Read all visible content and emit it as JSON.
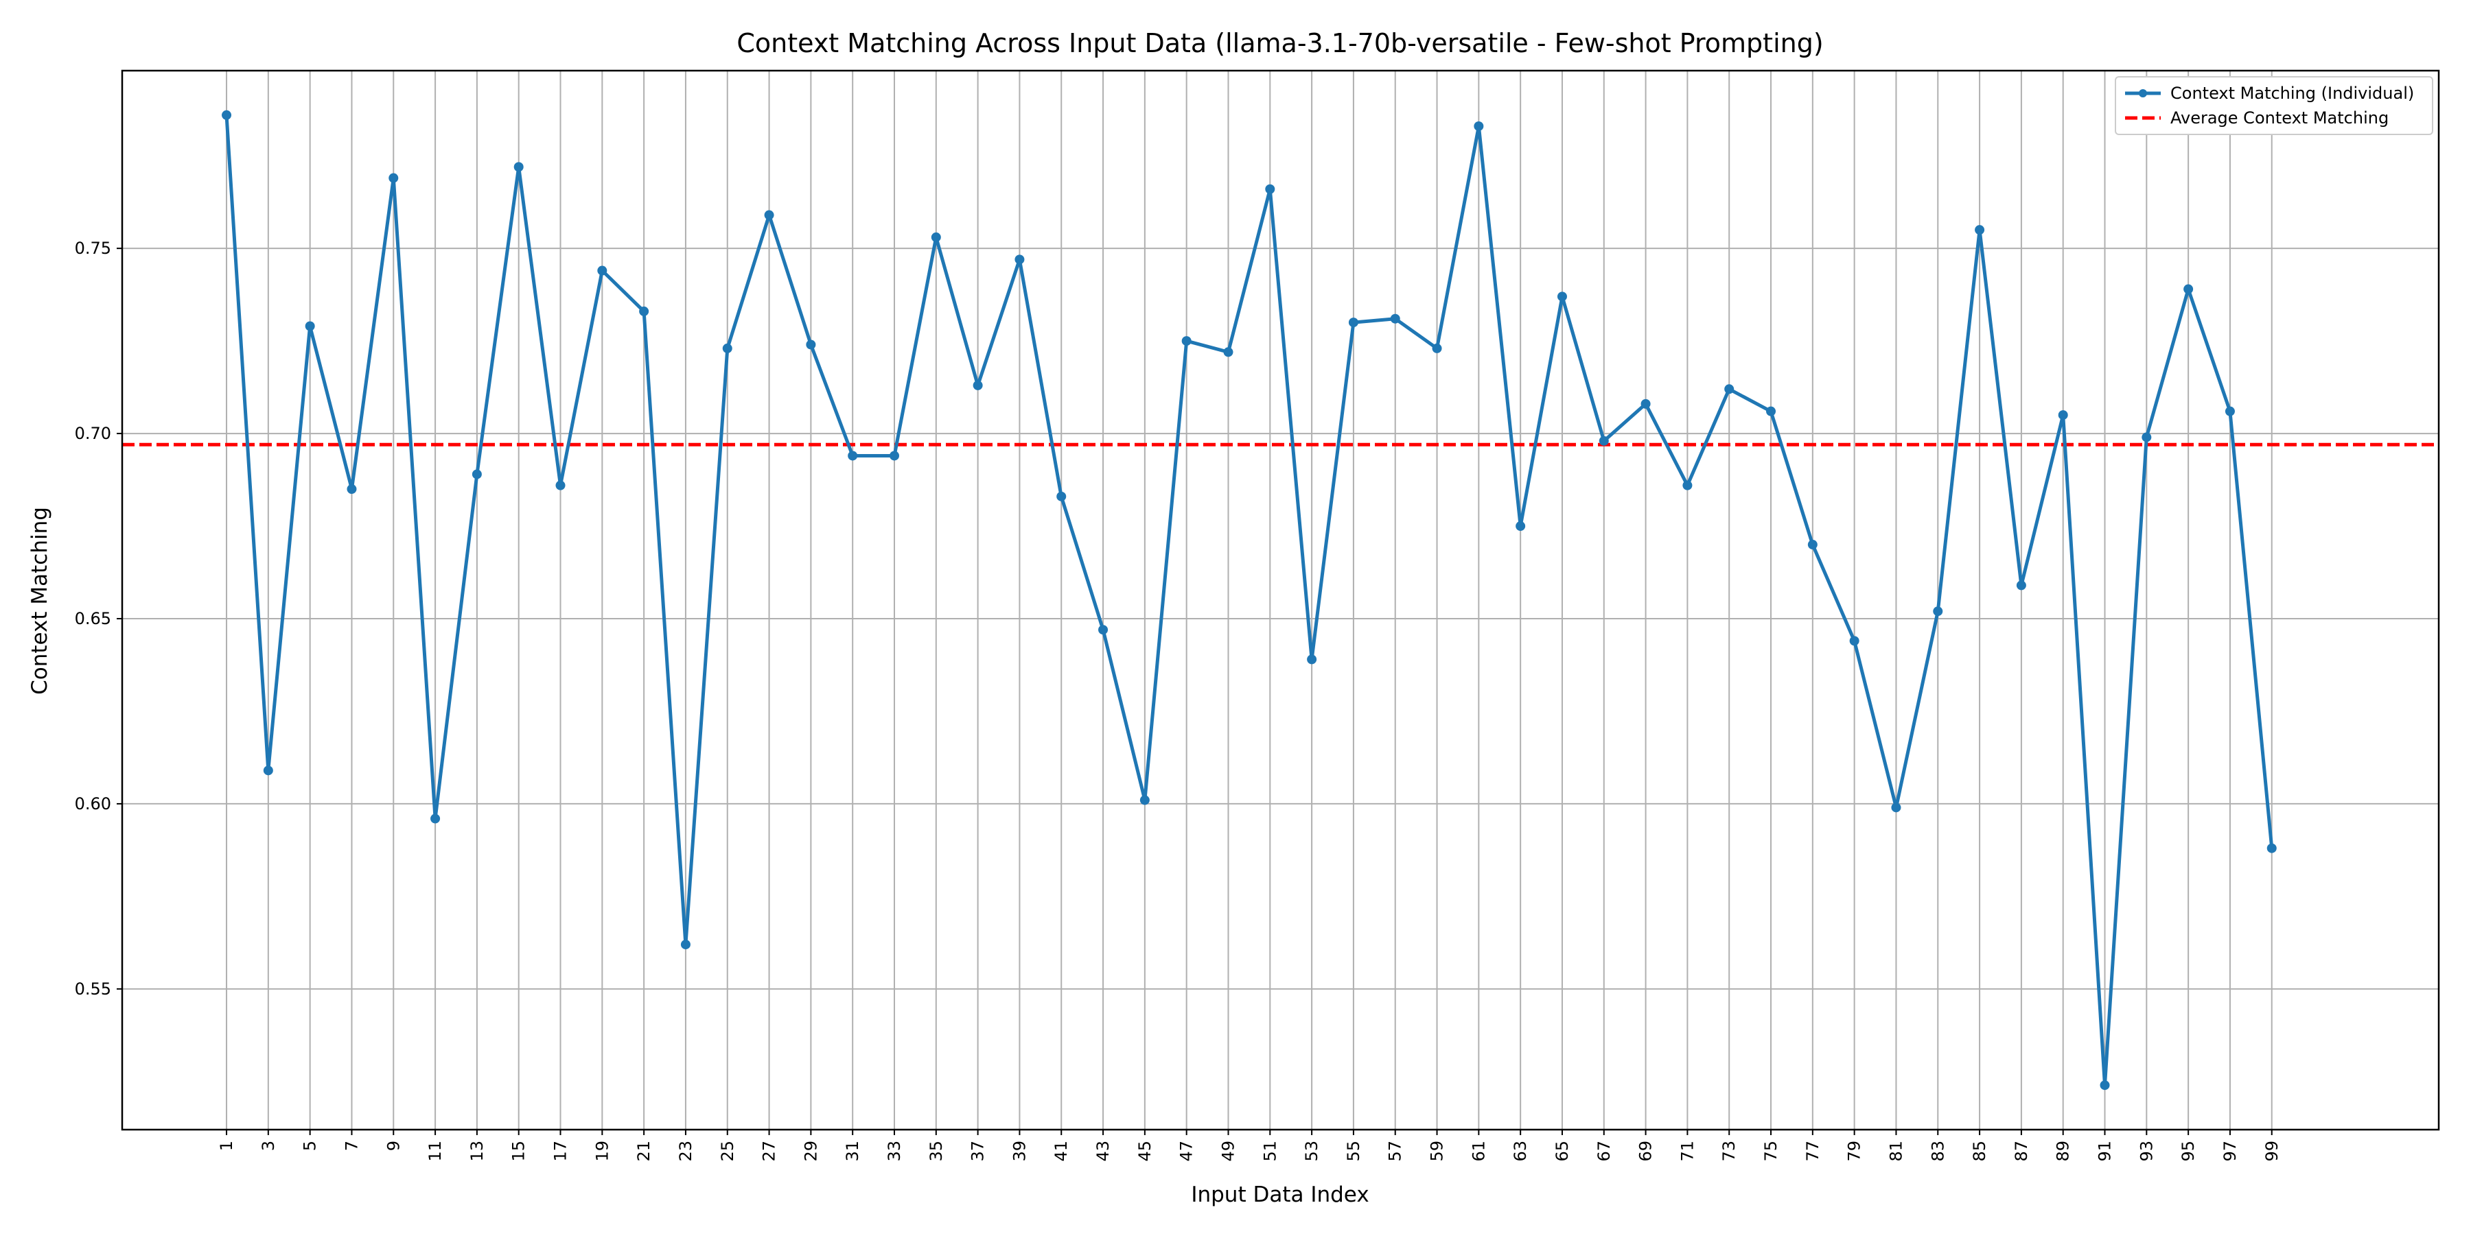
{
  "chart_data": {
    "type": "line",
    "title": "Context Matching Across Input Data (llama-3.1-70b-versatile - Few-shot Prompting)",
    "xlabel": "Input Data Index",
    "ylabel": "Context Matching",
    "x": [
      1,
      3,
      5,
      7,
      9,
      11,
      13,
      15,
      17,
      19,
      21,
      23,
      25,
      27,
      29,
      31,
      33,
      35,
      37,
      39,
      41,
      43,
      45,
      47,
      49,
      51,
      53,
      55,
      57,
      59,
      61,
      63,
      65,
      67,
      69,
      71,
      73,
      75,
      77,
      79,
      81,
      83,
      85,
      87,
      89,
      91,
      93,
      95,
      97,
      99
    ],
    "xticks": [
      "1",
      "3",
      "5",
      "7",
      "9",
      "11",
      "13",
      "15",
      "17",
      "19",
      "21",
      "23",
      "25",
      "27",
      "29",
      "31",
      "33",
      "35",
      "37",
      "39",
      "41",
      "43",
      "45",
      "47",
      "49",
      "51",
      "53",
      "55",
      "57",
      "59",
      "61",
      "63",
      "65",
      "67",
      "69",
      "71",
      "73",
      "75",
      "77",
      "79",
      "81",
      "83",
      "85",
      "87",
      "89",
      "91",
      "93",
      "95",
      "97",
      "99"
    ],
    "yticks": [
      "0.55",
      "0.60",
      "0.65",
      "0.70",
      "0.75"
    ],
    "ytick_values": [
      0.55,
      0.6,
      0.65,
      0.7,
      0.75
    ],
    "xlim": [
      -4,
      107
    ],
    "ylim": [
      0.512,
      0.798
    ],
    "grid": true,
    "legend_position": "top-right",
    "series": [
      {
        "name": "Context Matching (Individual)",
        "color": "#1f77b4",
        "style": "solid-line-with-markers",
        "values": [
          0.786,
          0.609,
          0.729,
          0.685,
          0.769,
          0.596,
          0.689,
          0.772,
          0.686,
          0.744,
          0.733,
          0.562,
          0.723,
          0.759,
          0.724,
          0.694,
          0.694,
          0.753,
          0.713,
          0.747,
          0.683,
          0.647,
          0.601,
          0.725,
          0.722,
          0.766,
          0.639,
          0.73,
          0.731,
          0.723,
          0.783,
          0.675,
          0.737,
          0.698,
          0.708,
          0.686,
          0.712,
          0.706,
          0.67,
          0.644,
          0.599,
          0.652,
          0.755,
          0.659,
          0.705,
          0.524,
          0.699,
          0.739,
          0.706,
          0.588
        ]
      },
      {
        "name": "Average Context Matching",
        "color": "#ff0000",
        "style": "dashed",
        "value": 0.697
      }
    ]
  }
}
